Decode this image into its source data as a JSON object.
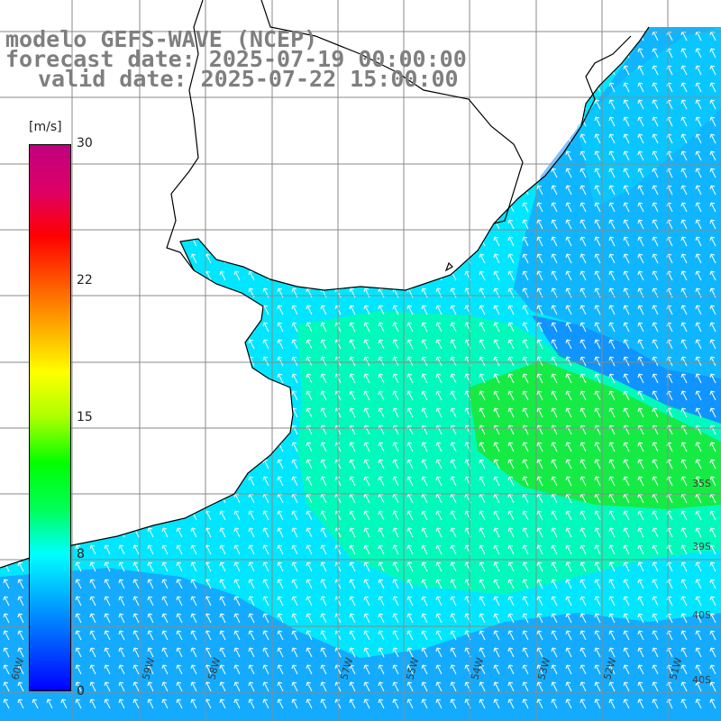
{
  "title": {
    "line1": "modelo GEFS-WAVE (NCEP)",
    "line2": "forecast date: 2025-07-19 00:00:00",
    "line3": "valid date: 2025-07-22 15:00:00"
  },
  "colorbar": {
    "unit": "[m/s]",
    "ticks": [
      "30",
      "22",
      "15",
      "8",
      "0"
    ],
    "min": 0,
    "max": 30,
    "gradient": [
      "#0000ff",
      "#0055ff",
      "#00aaff",
      "#00ffff",
      "#00ff55",
      "#00ff00",
      "#aaff00",
      "#ffff00",
      "#ffaa00",
      "#ff5500",
      "#ff0000",
      "#dd0066",
      "#c00080"
    ]
  },
  "map": {
    "region": "Rio de la Plata / Uruguay / South Atlantic",
    "lat_labels": [
      "35S",
      "39S",
      "40S",
      "40S"
    ],
    "lon_labels": [
      "60W",
      "59W",
      "58W",
      "57W",
      "55W",
      "54W",
      "53W",
      "52W",
      "51W"
    ],
    "wind_direction": "from south-east (arrows pointing north-west)",
    "colors": {
      "strong": "#1ee61e",
      "medium": "#00ffaa",
      "weak": "#00e6ff",
      "weakest": "#1e8cff",
      "land": "#ffffff",
      "coast": "#000000",
      "grid": "#888888"
    }
  }
}
